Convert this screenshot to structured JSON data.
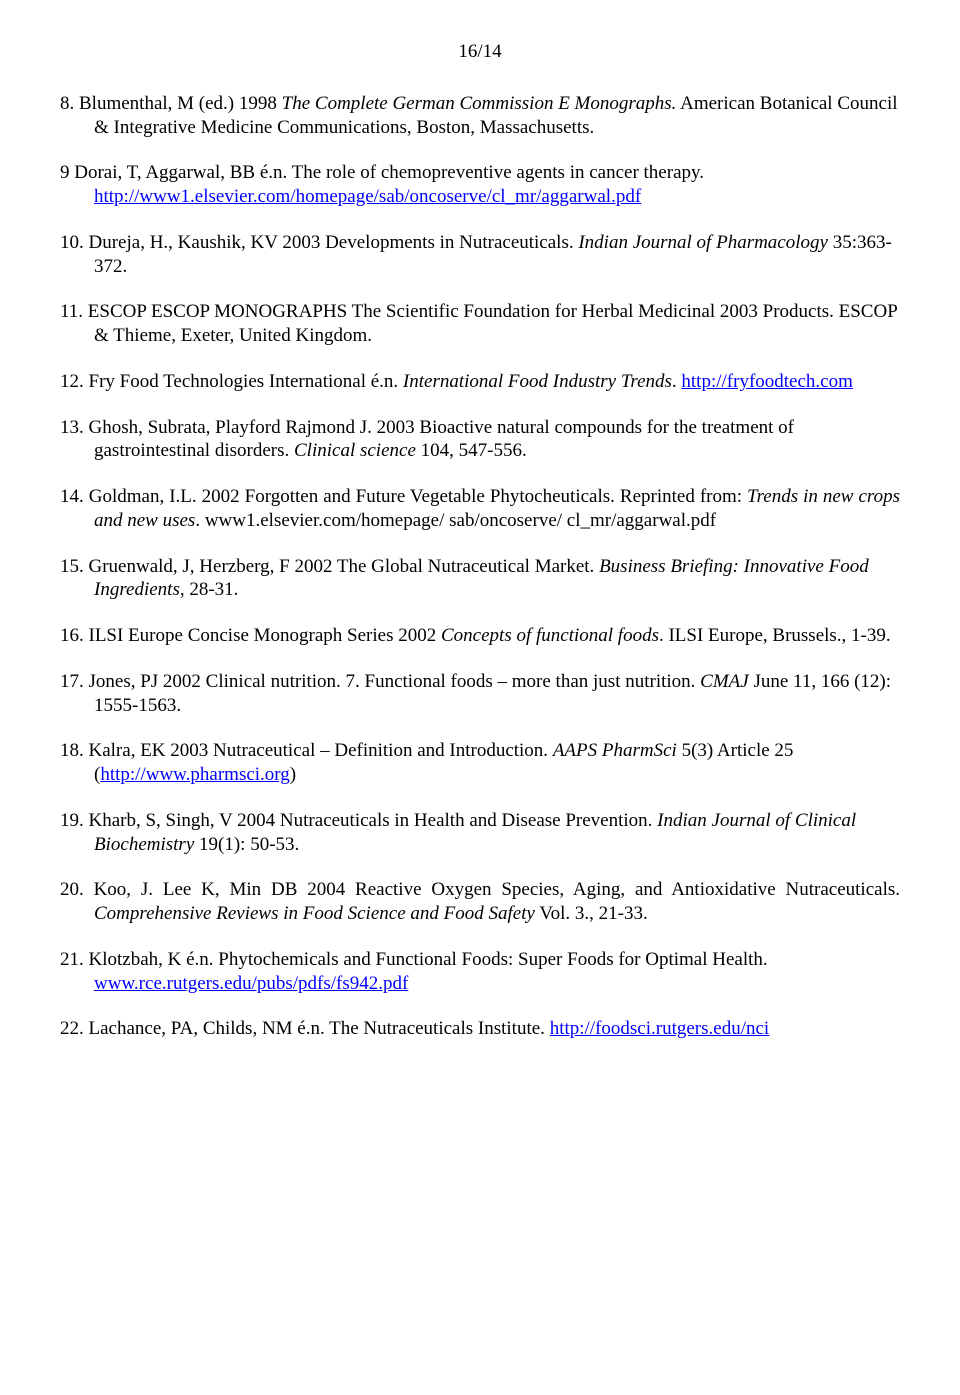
{
  "page_number": "16/14",
  "colors": {
    "text": "#000000",
    "link": "#0000ff",
    "background": "#ffffff"
  },
  "typography": {
    "font_family": "Times New Roman",
    "body_fontsize_pt": 14
  },
  "refs": {
    "r8": {
      "num": "8.",
      "a": " Blumenthal, M (ed.) 1998 ",
      "i1": "The Complete German Commission E Monographs.",
      "b": " American Botanical Council & Integrative Medicine Communications, Boston, Massachusetts."
    },
    "r9": {
      "num": "9",
      "a": " Dorai, T, Aggarwal, BB é.n. The role of chemopreventive agents in cancer therapy. ",
      "link": "http://www1.elsevier.com/homepage/sab/oncoserve/cl_mr/aggarwal.pdf"
    },
    "r10": {
      "num": "10.",
      "a": " Dureja, H., Kaushik, KV 2003 Developments in Nutraceuticals. ",
      "i1": "Indian Journal of Pharmacology ",
      "b": "35:363-372."
    },
    "r11": {
      "num": "11.",
      "a": " ESCOP   ESCOP MONOGRAPHS The Scientific Foundation for Herbal Medicinal 2003 Products. ESCOP & Thieme, Exeter, United Kingdom."
    },
    "r12": {
      "num": "12.",
      "a": " Fry Food Technologies International é.n. ",
      "i1": "International Food Industry Trends",
      "b": ". ",
      "link": "http://fryfoodtech.com"
    },
    "r13": {
      "num": "13.",
      "a": " Ghosh, Subrata, Playford Rajmond J. 2003 Bioactive natural compounds for the treatment of gastrointestinal disorders. ",
      "i1": "Clinical science",
      "b": " 104, 547-556."
    },
    "r14": {
      "num": "14.",
      "a": " Goldman, I.L. 2002       Forgotten and Future Vegetable Phytocheuticals. Reprinted from: ",
      "i1": "Trends in new crops and new uses",
      "b": ". www1.elsevier.com/homepage/ sab/oncoserve/ cl_mr/aggarwal.pdf"
    },
    "r15": {
      "num": "15.",
      "a": " Gruenwald, J, Herzberg, F 2002 The Global Nutraceutical Market. ",
      "i1": "Business Briefing: Innovative Food Ingredients",
      "b": ", 28-31."
    },
    "r16": {
      "num": "16.",
      "a": " ILSI Europe Concise Monograph Series 2002 ",
      "i1": "Concepts of functional foods",
      "b": ".  ILSI Europe, Brussels., 1-39."
    },
    "r17": {
      "num": "17.",
      "a": " Jones, PJ 2002 Clinical nutrition. 7. Functional foods – more than just nutrition. ",
      "i1": "CMAJ",
      "b": " June 11, 166 (12): 1555-1563."
    },
    "r18": {
      "num": "18.",
      "a": " Kalra, EK 2003 Nutraceutical – Definition and Introduction. ",
      "i1": "AAPS PharmSci",
      "b": " 5(3) Article 25 (",
      "link": "http://www.pharmsci.org",
      "c": ")"
    },
    "r19": {
      "num": "19.",
      "a": " Kharb, S, Singh, V 2004 Nutraceuticals in Health and Disease Prevention. ",
      "i1": "Indian Journal of Clinical Biochemistry",
      "b": " 19(1): 50-53."
    },
    "r20": {
      "num": "20.",
      "a": " Koo, J. Lee K, Min DB 2004 Reactive Oxygen Species, Aging, and Antioxidative Nutraceuticals. ",
      "i1": "Comprehensive Reviews in Food Science and Food Safety",
      "b": " Vol. 3., 21-33."
    },
    "r21": {
      "num": "21.",
      "a": " Klotzbah, K é.n. Phytochemicals and Functional Foods: Super Foods for Optimal Health. ",
      "link": "www.rce.rutgers.edu/pubs/pdfs/fs942.pdf"
    },
    "r22": {
      "num": "22.",
      "a": " Lachance, PA, Childs, NM é.n. The Nutraceuticals Institute. ",
      "link": "http://foodsci.rutgers.edu/nci"
    }
  }
}
